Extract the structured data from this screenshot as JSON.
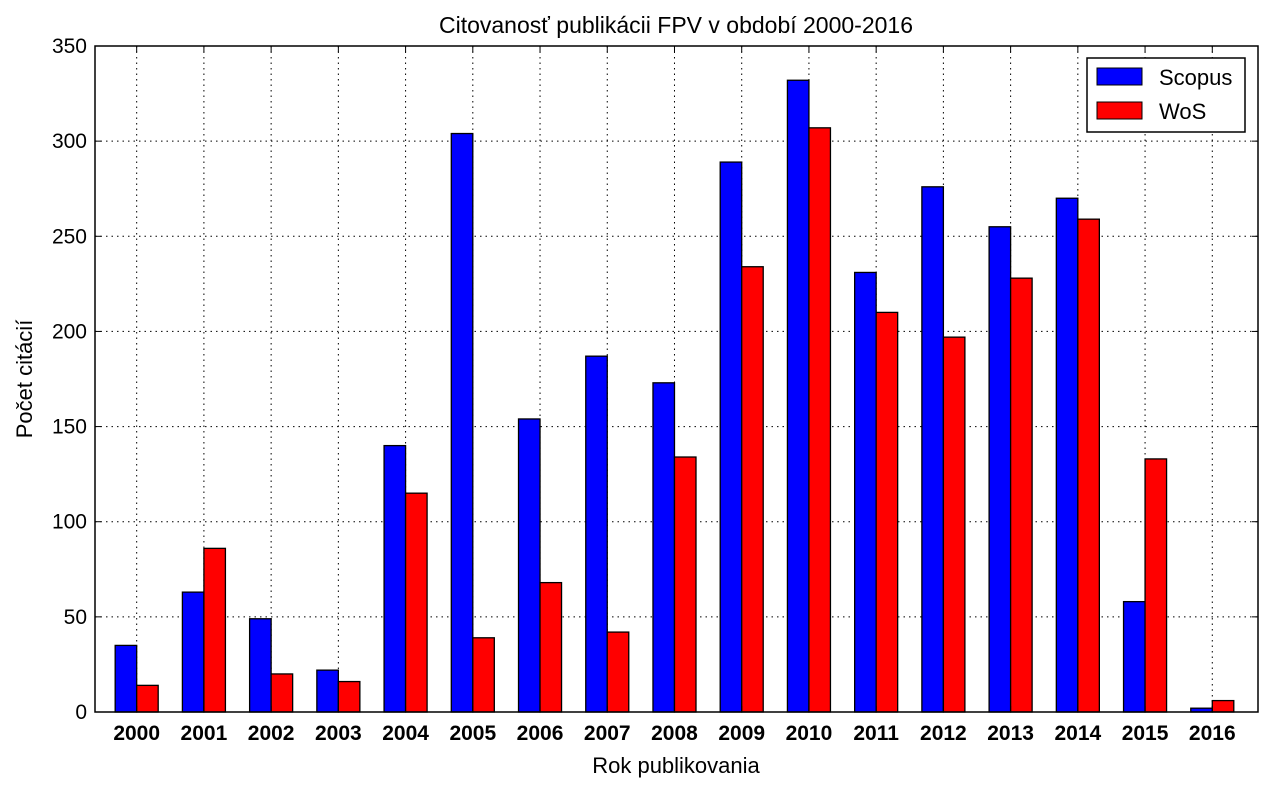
{
  "chart_data": {
    "type": "bar",
    "title": "Citovanosť publikácii FPV v období 2000-2016",
    "xlabel": "Rok publikovania",
    "ylabel": "Počet citácií",
    "ylim": [
      0,
      350
    ],
    "yticks": [
      0,
      50,
      100,
      150,
      200,
      250,
      300,
      350
    ],
    "grid": true,
    "legend_position": "top-right",
    "categories": [
      "2000",
      "2001",
      "2002",
      "2003",
      "2004",
      "2005",
      "2006",
      "2007",
      "2008",
      "2009",
      "2010",
      "2011",
      "2012",
      "2013",
      "2014",
      "2015",
      "2016"
    ],
    "series": [
      {
        "name": "Scopus",
        "color": "#0000ff",
        "values": [
          35,
          63,
          49,
          22,
          140,
          304,
          154,
          187,
          173,
          289,
          332,
          231,
          276,
          255,
          270,
          58,
          2
        ]
      },
      {
        "name": "WoS",
        "color": "#ff0000",
        "values": [
          14,
          86,
          20,
          16,
          115,
          39,
          68,
          42,
          134,
          234,
          307,
          210,
          197,
          228,
          259,
          133,
          6
        ]
      }
    ]
  }
}
